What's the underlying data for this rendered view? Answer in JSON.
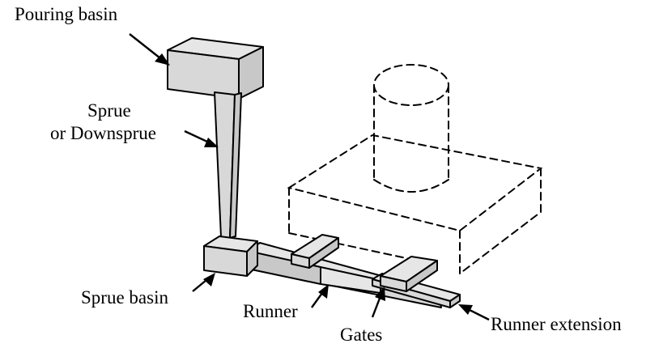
{
  "labels": {
    "pouring_basin": "Pouring basin",
    "sprue_line1": "Sprue",
    "sprue_line2": "or Downsprue",
    "sprue_basin": "Sprue basin",
    "runner": "Runner",
    "gates": "Gates",
    "runner_extension": "Runner extension"
  },
  "colors": {
    "line": "#000000",
    "fill_light": "#e6e6e6",
    "fill_dark": "#c8c8c8",
    "background": "#ffffff"
  }
}
